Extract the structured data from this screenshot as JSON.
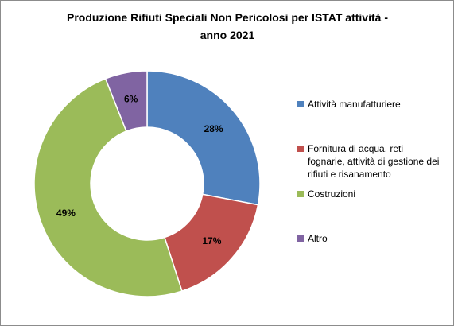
{
  "chart_data": {
    "type": "pie",
    "donut": true,
    "title_lines": [
      "Produzione Rifiuti Speciali Non Pericolosi per ISTAT attività -",
      "anno 2021"
    ],
    "categories": [
      "Attività manufatturiere",
      "Fornitura di acqua, reti fognarie, attività di gestione dei rifiuti e risanamento",
      "Costruzioni",
      "Altro"
    ],
    "values": [
      28,
      17,
      49,
      6
    ],
    "labels": [
      "28%",
      "17%",
      "49%",
      "6%"
    ],
    "colors": [
      "#4f81bd",
      "#c0504d",
      "#9bbb59",
      "#8064a2"
    ],
    "legend_position": "right"
  },
  "legend": {
    "items": [
      {
        "lines": [
          "Attività manufatturiere"
        ],
        "color": "#4f81bd"
      },
      {
        "lines": [
          "Fornitura di acqua, reti",
          "fognarie, attività di gestione dei",
          "rifiuti e risanamento"
        ],
        "color": "#c0504d"
      },
      {
        "lines": [
          "Costruzioni"
        ],
        "color": "#9bbb59"
      },
      {
        "lines": [
          "Altro"
        ],
        "color": "#8064a2"
      }
    ]
  }
}
